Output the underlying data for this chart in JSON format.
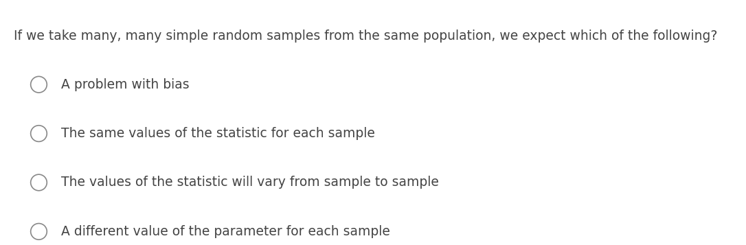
{
  "background_color": "#ffffff",
  "question": "If we take many, many simple random samples from the same population, we expect which of the following?",
  "question_fontsize": 13.5,
  "question_color": "#444444",
  "options": [
    "A problem with bias",
    "The same values of the statistic for each sample",
    "The values of the statistic will vary from sample to sample",
    "A different value of the parameter for each sample"
  ],
  "option_fontsize": 13.5,
  "option_color": "#444444",
  "circle_edgecolor": "#888888",
  "circle_facecolor": "#ffffff",
  "circle_linewidth": 1.2
}
